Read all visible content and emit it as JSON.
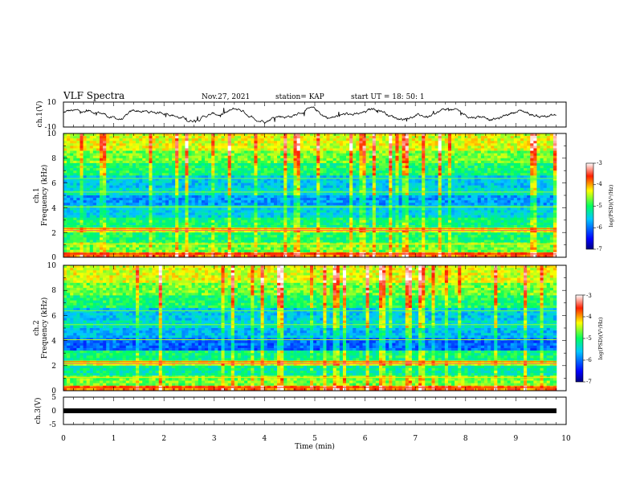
{
  "header": {
    "title": "VLF Spectra",
    "date": "Nov.27, 2021",
    "station": "station= KAP",
    "start": "start  UT =   18: 50: 1"
  },
  "chart_data": [
    {
      "type": "line",
      "name": "ch1-waveform",
      "ylabel": "ch.1(V)",
      "ylim": [
        -10,
        10
      ],
      "yticks": [
        "10",
        "-10"
      ],
      "xlim": [
        0,
        10
      ],
      "data_end_min": 9.8
    },
    {
      "type": "heatmap",
      "name": "ch1-spectrogram",
      "ylabel": "ch.1\nFrequency (kHz)",
      "ylabel_line1": "ch.1",
      "ylabel_line2": "Frequency (kHz)",
      "ylim": [
        0,
        10
      ],
      "yticks": [
        "0",
        "2",
        "4",
        "6",
        "8",
        "10"
      ],
      "xlim": [
        0,
        10
      ],
      "colorbar": {
        "label": "log(PSD)(V²/Hz)",
        "range": [
          -7,
          -3
        ],
        "ticks": [
          "-3",
          "-4",
          "-5",
          "-6",
          "-7"
        ]
      }
    },
    {
      "type": "heatmap",
      "name": "ch2-spectrogram",
      "ylabel_line1": "ch.2",
      "ylabel_line2": "Frequency (kHz)",
      "ylim": [
        0,
        10
      ],
      "yticks": [
        "0",
        "2",
        "4",
        "6",
        "8",
        "10"
      ],
      "xlim": [
        0,
        10
      ],
      "colorbar": {
        "label": "log(PSD)(V²/Hz)",
        "range": [
          -7,
          -3
        ],
        "ticks": [
          "-3",
          "-4",
          "-5",
          "-6",
          "-7"
        ]
      }
    },
    {
      "type": "line",
      "name": "ch3-trace",
      "ylabel": "ch.3(V)",
      "ylim": [
        -5,
        5
      ],
      "yticks": [
        "5",
        "0",
        "-5"
      ],
      "xlim": [
        0,
        10
      ],
      "xlabel": "Time (min)",
      "xticks": [
        "0",
        "1",
        "2",
        "3",
        "4",
        "5",
        "6",
        "7",
        "8",
        "9",
        "10"
      ]
    }
  ]
}
